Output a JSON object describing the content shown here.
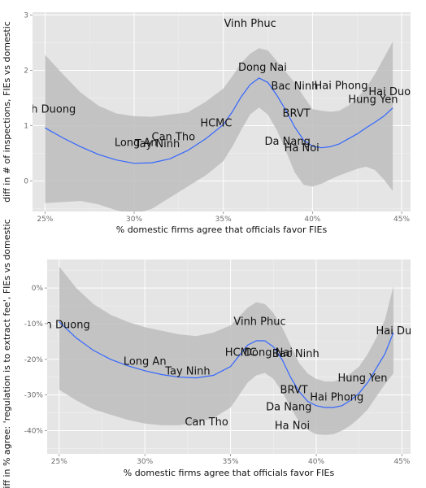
{
  "chart_data": [
    {
      "type": "scatter",
      "title": "",
      "xlabel": "% domestic firms agree that officials favor FIEs",
      "ylabel": "diff in # of inspections, FIEs vs domestic",
      "xlim": [
        0.243,
        0.455
      ],
      "ylim": [
        -0.55,
        3.05
      ],
      "grid": true,
      "smooth": true,
      "x_ticks": [
        0.25,
        0.3,
        0.35,
        0.4,
        0.45
      ],
      "x_tick_labels": [
        "25%",
        "30%",
        "35%",
        "40%",
        "45%"
      ],
      "y_ticks": [
        0,
        1,
        2,
        3
      ],
      "y_tick_labels": [
        "0",
        "1",
        "2",
        "3"
      ],
      "points": [
        {
          "label": "Binh Duong",
          "x": 0.25,
          "y": 1.3
        },
        {
          "label": "Long An",
          "x": 0.301,
          "y": 0.7
        },
        {
          "label": "Tay Ninh",
          "x": 0.313,
          "y": 0.68
        },
        {
          "label": "Can Tho",
          "x": 0.322,
          "y": 0.8
        },
        {
          "label": "HCMC",
          "x": 0.346,
          "y": 1.05
        },
        {
          "label": "Vinh Phuc",
          "x": 0.365,
          "y": 2.85
        },
        {
          "label": "Dong Nai",
          "x": 0.372,
          "y": 2.06
        },
        {
          "label": "Bac Ninh",
          "x": 0.39,
          "y": 1.72
        },
        {
          "label": "BRVT",
          "x": 0.391,
          "y": 1.23
        },
        {
          "label": "Da Nang",
          "x": 0.386,
          "y": 0.72
        },
        {
          "label": "Ha Noi",
          "x": 0.394,
          "y": 0.6
        },
        {
          "label": "Hai Phong",
          "x": 0.416,
          "y": 1.73
        },
        {
          "label": "Hung Yen",
          "x": 0.434,
          "y": 1.48
        },
        {
          "label": "Hai Duong",
          "x": 0.447,
          "y": 1.62
        }
      ],
      "smooth_curve": {
        "x": [
          0.25,
          0.26,
          0.27,
          0.28,
          0.29,
          0.3,
          0.31,
          0.32,
          0.33,
          0.34,
          0.35,
          0.355,
          0.36,
          0.365,
          0.37,
          0.375,
          0.38,
          0.385,
          0.39,
          0.395,
          0.4,
          0.405,
          0.41,
          0.415,
          0.42,
          0.425,
          0.43,
          0.435,
          0.44,
          0.445
        ],
        "y": [
          0.96,
          0.78,
          0.62,
          0.48,
          0.38,
          0.32,
          0.33,
          0.4,
          0.55,
          0.76,
          1.02,
          1.25,
          1.52,
          1.74,
          1.86,
          1.78,
          1.55,
          1.28,
          0.98,
          0.74,
          0.63,
          0.6,
          0.62,
          0.67,
          0.76,
          0.85,
          0.96,
          1.06,
          1.17,
          1.32
        ]
      },
      "confidence_band": {
        "lower": [
          -0.4,
          -0.38,
          -0.36,
          -0.42,
          -0.53,
          -0.6,
          -0.5,
          -0.3,
          -0.1,
          0.1,
          0.36,
          0.62,
          0.92,
          1.2,
          1.33,
          1.2,
          0.92,
          0.55,
          0.16,
          -0.07,
          -0.1,
          -0.05,
          0.03,
          0.1,
          0.16,
          0.22,
          0.26,
          0.2,
          0.03,
          -0.18
        ],
        "upper": [
          2.28,
          1.93,
          1.6,
          1.36,
          1.22,
          1.17,
          1.16,
          1.2,
          1.24,
          1.43,
          1.67,
          1.89,
          2.13,
          2.3,
          2.4,
          2.36,
          2.17,
          1.97,
          1.78,
          1.53,
          1.3,
          1.27,
          1.25,
          1.27,
          1.36,
          1.5,
          1.68,
          1.93,
          2.22,
          2.52
        ]
      }
    },
    {
      "type": "scatter",
      "title": "",
      "xlabel": "% domestic firms agree that officials favor FIEs",
      "ylabel": "diff in % agree: 'regulation is to extract fee', FIEs vs domestic",
      "xlim": [
        0.243,
        0.455
      ],
      "ylim": [
        -0.465,
        0.08
      ],
      "grid": true,
      "smooth": true,
      "x_ticks": [
        0.25,
        0.3,
        0.35,
        0.4,
        0.45
      ],
      "x_tick_labels": [
        "25%",
        "30%",
        "35%",
        "40%",
        "45%"
      ],
      "y_ticks": [
        0,
        -0.1,
        -0.2,
        -0.3,
        -0.4
      ],
      "y_tick_labels": [
        "0%",
        "-10%",
        "-20%",
        "-30%",
        "-40%"
      ],
      "points": [
        {
          "label": "Binh Duong",
          "x": 0.25,
          "y": -0.102
        },
        {
          "label": "Long An",
          "x": 0.3,
          "y": -0.205
        },
        {
          "label": "Tay Ninh",
          "x": 0.325,
          "y": -0.232
        },
        {
          "label": "Can Tho",
          "x": 0.336,
          "y": -0.375
        },
        {
          "label": "HCMC",
          "x": 0.356,
          "y": -0.18
        },
        {
          "label": "Vinh Phuc",
          "x": 0.367,
          "y": -0.093
        },
        {
          "label": "Dong Nai",
          "x": 0.372,
          "y": -0.18
        },
        {
          "label": "Bac Ninh",
          "x": 0.388,
          "y": -0.183
        },
        {
          "label": "BRVT",
          "x": 0.387,
          "y": -0.285
        },
        {
          "label": "Da Nang",
          "x": 0.384,
          "y": -0.333
        },
        {
          "label": "Ha Noi",
          "x": 0.386,
          "y": -0.385
        },
        {
          "label": "Hai Phong",
          "x": 0.412,
          "y": -0.305
        },
        {
          "label": "Hung Yen",
          "x": 0.427,
          "y": -0.252
        },
        {
          "label": "Hai Duong",
          "x": 0.451,
          "y": -0.12
        }
      ],
      "smooth_curve": {
        "x": [
          0.25,
          0.26,
          0.27,
          0.28,
          0.29,
          0.3,
          0.31,
          0.32,
          0.33,
          0.34,
          0.35,
          0.355,
          0.36,
          0.365,
          0.37,
          0.375,
          0.38,
          0.385,
          0.39,
          0.395,
          0.4,
          0.405,
          0.41,
          0.415,
          0.42,
          0.425,
          0.43,
          0.435,
          0.44,
          0.445
        ],
        "y": [
          -0.095,
          -0.14,
          -0.175,
          -0.2,
          -0.218,
          -0.232,
          -0.243,
          -0.25,
          -0.252,
          -0.245,
          -0.22,
          -0.19,
          -0.16,
          -0.148,
          -0.148,
          -0.165,
          -0.2,
          -0.25,
          -0.29,
          -0.318,
          -0.33,
          -0.335,
          -0.335,
          -0.33,
          -0.315,
          -0.295,
          -0.265,
          -0.225,
          -0.185,
          -0.125
        ]
      },
      "confidence_band": {
        "lower": [
          -0.285,
          -0.315,
          -0.34,
          -0.355,
          -0.37,
          -0.38,
          -0.385,
          -0.385,
          -0.378,
          -0.365,
          -0.335,
          -0.3,
          -0.265,
          -0.245,
          -0.238,
          -0.255,
          -0.29,
          -0.335,
          -0.375,
          -0.398,
          -0.41,
          -0.412,
          -0.41,
          -0.4,
          -0.385,
          -0.365,
          -0.34,
          -0.305,
          -0.27,
          -0.24
        ],
        "upper": [
          0.06,
          0.0,
          -0.045,
          -0.075,
          -0.095,
          -0.11,
          -0.12,
          -0.13,
          -0.135,
          -0.125,
          -0.105,
          -0.08,
          -0.055,
          -0.04,
          -0.045,
          -0.07,
          -0.11,
          -0.16,
          -0.21,
          -0.24,
          -0.255,
          -0.262,
          -0.262,
          -0.255,
          -0.24,
          -0.22,
          -0.185,
          -0.14,
          -0.09,
          0.005
        ]
      }
    }
  ]
}
